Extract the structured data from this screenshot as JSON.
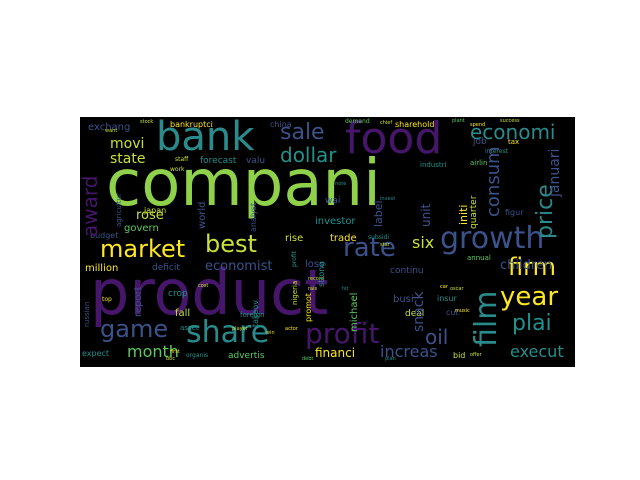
{
  "colors": {
    "background": "#000000",
    "page": "#ffffff",
    "palette": [
      "#440154",
      "#3b528b",
      "#21918c",
      "#5ec962",
      "#fde725"
    ]
  },
  "words": {
    "compani": "compani",
    "product": "product",
    "bank": "bank",
    "food": "food",
    "growth": "growth",
    "share": "share",
    "profit": "profit",
    "market": "market",
    "best": "best",
    "rate": "rate",
    "firm": "firm",
    "year": "year",
    "film": "film",
    "game": "game",
    "price": "price",
    "economi": "economi",
    "sale": "sale",
    "dollar": "dollar",
    "award": "award",
    "consum": "consum",
    "plai": "plai",
    "oil": "oil",
    "month": "month",
    "execut": "execut",
    "movi": "movi",
    "state": "state",
    "rose": "rose",
    "economist": "economist",
    "six": "six",
    "children": "children",
    "increas": "increas",
    "financi": "financi",
    "exchang": "exchang",
    "bankruptci": "bankruptci",
    "china": "china",
    "sharehold": "sharehold",
    "januari": "januari",
    "govern": "govern",
    "japan": "japan",
    "budget": "budget",
    "million": "million",
    "deficit": "deficit",
    "crop": "crop",
    "fall": "fall",
    "report": "report",
    "expect": "expect",
    "asset": "asset",
    "advertis": "advertis",
    "investor": "investor",
    "loss": "loss",
    "trade": "trade",
    "rise": "rise",
    "label": "label",
    "unit": "unit",
    "michael": "michael",
    "busi": "busi",
    "deal": "deal",
    "insur": "insur",
    "bid": "bid",
    "snack": "snack",
    "annual": "annual",
    "initi": "initi",
    "quarter": "quarter",
    "figur": "figur",
    "job": "job",
    "tax": "tax",
    "interest": "interest",
    "forecast": "forecast",
    "valu": "valu",
    "world": "world",
    "wai": "wai",
    "takeov": "takeov",
    "promot": "promot",
    "continu": "continu",
    "industri": "industri",
    "airlin": "airlin",
    "work": "work",
    "demand": "demand",
    "nigeria": "nigeria",
    "foreign": "foreign",
    "strong": "strong",
    "organis": "organis",
    "cost": "cost",
    "top": "top",
    "first": "first",
    "bbc": "bbc",
    "player": "player",
    "win": "win",
    "offer": "offer",
    "music": "music",
    "cut": "cut",
    "car": "car",
    "plant": "plant",
    "spend": "spend",
    "success": "success",
    "analyst": "analyst",
    "agricultur": "agricultur",
    "russian": "russian",
    "actor": "actor",
    "debt": "debt",
    "plan": "plan",
    "staff": "staff",
    "subsidi": "subsidi",
    "star": "star",
    "stock": "stock",
    "hit": "hit",
    "want": "want",
    "record": "record",
    "profit2": "profit",
    "oscar": "oscar",
    "rais": "rais",
    "note": "note",
    "invest": "invest",
    "chief": "chief"
  }
}
